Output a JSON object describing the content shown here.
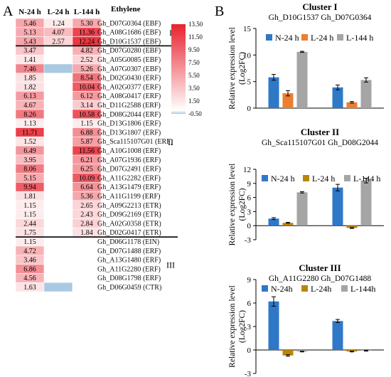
{
  "panel_letters": [
    "A",
    "B"
  ],
  "chart_data": [
    {
      "type": "heatmap",
      "title": "Ethylene",
      "columns": [
        "N-24 h",
        "L-24 h",
        "L-144 h"
      ],
      "color_scale": {
        "ticks": [
          13.5,
          11.5,
          9.5,
          7.5,
          5.5,
          3.5,
          1.5,
          -0.5
        ],
        "tick_labels": [
          "13.50",
          "11.50",
          "9.50",
          "7.50",
          "5.50",
          "3.50",
          "1.50",
          "-0.50"
        ],
        "min": -0.5,
        "max": 13.5,
        "colors": {
          "low": "#a9c9e3",
          "zero": "#ffffff",
          "high": "#e8222e"
        }
      },
      "clusters": [
        {
          "label": "I",
          "start": 0,
          "end": 2
        },
        {
          "label": "II",
          "start": 3,
          "end": 23
        },
        {
          "label": "III",
          "start": 24,
          "end": 29
        }
      ],
      "rows": [
        {
          "gene": "Gh_D07G0364 (EBF)",
          "values": [
            5.46,
            1.24,
            5.3
          ],
          "labels": [
            "5.46",
            "1.24",
            "5.30"
          ]
        },
        {
          "gene": "Gh_A08G1686 (EBF)",
          "values": [
            5.13,
            4.07,
            11.36
          ],
          "labels": [
            "5.13",
            "4.07",
            "11.36"
          ]
        },
        {
          "gene": "Gh_D10G1537 (EBF)",
          "values": [
            5.43,
            2.57,
            12.24
          ],
          "labels": [
            "5.43",
            "2.57",
            "12.24"
          ]
        },
        {
          "gene": "Gh_D07G0280 (EBF)",
          "values": [
            3.47,
            null,
            4.82
          ],
          "labels": [
            "3.47",
            "",
            "4.82"
          ]
        },
        {
          "gene": "Gh_A05G0085 (EBF)",
          "values": [
            1.41,
            null,
            2.52
          ],
          "labels": [
            "1.41",
            "",
            "2.52"
          ]
        },
        {
          "gene": "Gh_A07G0307 (EBF)",
          "values": [
            7.46,
            -0.5,
            5.26
          ],
          "labels": [
            "7.46",
            "",
            "5.26"
          ]
        },
        {
          "gene": "Gh_D02G0430 (ERF)",
          "values": [
            1.85,
            null,
            8.54
          ],
          "labels": [
            "1.85",
            "",
            "8.54"
          ]
        },
        {
          "gene": "Gh_A02G0377 (ERF)",
          "values": [
            1.82,
            null,
            10.04
          ],
          "labels": [
            "1.82",
            "",
            "10.04"
          ]
        },
        {
          "gene": "Gh_A08G0417 (ERF)",
          "values": [
            6.13,
            null,
            6.12
          ],
          "labels": [
            "6.13",
            "",
            "6.12"
          ]
        },
        {
          "gene": "Gh_D11G2588 (ERF)",
          "values": [
            4.67,
            null,
            3.14
          ],
          "labels": [
            "4.67",
            "",
            "3.14"
          ]
        },
        {
          "gene": "Gh_D08G2044 (ERF)",
          "values": [
            8.26,
            null,
            10.58
          ],
          "labels": [
            "8.26",
            "",
            "10.58"
          ]
        },
        {
          "gene": "Gh_D13G1806 (ERF)",
          "values": [
            1.13,
            null,
            1.15
          ],
          "labels": [
            "1.13",
            "",
            "1.15"
          ]
        },
        {
          "gene": "Gh_D13G1807 (ERF)",
          "values": [
            11.71,
            null,
            6.88
          ],
          "labels": [
            "11.71",
            "",
            "6.88"
          ]
        },
        {
          "gene": "Gh_Sca115107G01 (ERF)",
          "values": [
            1.52,
            null,
            5.87
          ],
          "labels": [
            "1.52",
            "",
            "5.87"
          ]
        },
        {
          "gene": "Gh_A10G1008 (ERF)",
          "values": [
            6.49,
            null,
            11.56
          ],
          "labels": [
            "6.49",
            "",
            "11.56"
          ]
        },
        {
          "gene": "Gh_A07G1936 (ERF)",
          "values": [
            3.95,
            null,
            6.21
          ],
          "labels": [
            "3.95",
            "",
            "6.21"
          ]
        },
        {
          "gene": "Gh_D07G2491 (ERF)",
          "values": [
            8.06,
            null,
            6.25
          ],
          "labels": [
            "8.06",
            "",
            "6.25"
          ]
        },
        {
          "gene": "Gh_A11G2282 (ERF)",
          "values": [
            5.15,
            null,
            10.09
          ],
          "labels": [
            "5.15",
            "",
            "10.09"
          ]
        },
        {
          "gene": "Gh_A13G1479 (ERF)",
          "values": [
            9.94,
            null,
            6.64
          ],
          "labels": [
            "9.94",
            "",
            "6.64"
          ]
        },
        {
          "gene": "Gh_A11G1199 (ERF)",
          "values": [
            1.81,
            null,
            5.36
          ],
          "labels": [
            "1.81",
            "",
            "5.36"
          ]
        },
        {
          "gene": "Gh_A09G2213 (ETR)",
          "values": [
            1.15,
            null,
            2.65
          ],
          "labels": [
            "1.15",
            "",
            "2.65"
          ]
        },
        {
          "gene": "Gh_D09G2169 (ETR)",
          "values": [
            1.15,
            null,
            2.43
          ],
          "labels": [
            "1.15",
            "",
            "2.43"
          ]
        },
        {
          "gene": "Gh_A02G0358 (ETR)",
          "values": [
            2.44,
            null,
            2.84
          ],
          "labels": [
            "2.44",
            "",
            "2.84"
          ]
        },
        {
          "gene": "Gh_D02G0417 (ETR)",
          "values": [
            1.75,
            null,
            1.84
          ],
          "labels": [
            "1.75",
            "",
            "1.84"
          ]
        },
        {
          "gene": "Gh_D06G1178 (EIN)",
          "values": [
            1.15,
            null,
            null
          ],
          "labels": [
            "1.15",
            "",
            ""
          ]
        },
        {
          "gene": "Gh_D07G1488 (ERF)",
          "values": [
            4.72,
            null,
            null
          ],
          "labels": [
            "4.72",
            "",
            ""
          ]
        },
        {
          "gene": "Gh_A13G1480 (ERF)",
          "values": [
            3.46,
            null,
            null
          ],
          "labels": [
            "3.46",
            "",
            ""
          ]
        },
        {
          "gene": "Gh_A11G2280 (ERF)",
          "values": [
            6.86,
            null,
            null
          ],
          "labels": [
            "6.86",
            "",
            ""
          ]
        },
        {
          "gene": "Gh_D08G1798 (ERF)",
          "values": [
            4.56,
            null,
            null
          ],
          "labels": [
            "4.56",
            "",
            ""
          ]
        },
        {
          "gene": "Gh_D06G0459 (CTR)",
          "values": [
            1.63,
            -0.5,
            null
          ],
          "labels": [
            "1.63",
            "",
            ""
          ]
        }
      ]
    },
    {
      "type": "bar",
      "title": "Cluster I",
      "subtitle": "Gh_D10G1537   Gh_D07G0364",
      "categories": [
        "Gh_D10G1537",
        "Gh_D07G0364"
      ],
      "ylabel": "Relative expression level",
      "ylabel2": "(Log2FC)",
      "ylim": [
        0,
        15
      ],
      "yticks": [
        0,
        5,
        10,
        15
      ],
      "legend": "top-left",
      "series": [
        {
          "name": "N-24 h",
          "color": "#2f78c8",
          "values": [
            5.8,
            3.9
          ],
          "errors": [
            0.55,
            0.45
          ]
        },
        {
          "name": "L-24 h",
          "color": "#ed7d31",
          "values": [
            2.8,
            1.1
          ],
          "errors": [
            0.5,
            0.15
          ]
        },
        {
          "name": "L-144 h",
          "color": "#a5a5a5",
          "values": [
            10.6,
            5.3
          ],
          "errors": [
            0.1,
            0.4
          ]
        }
      ]
    },
    {
      "type": "bar",
      "title": "Cluster II",
      "subtitle": "Gh_Sca115107G01    Gh_D08G2044",
      "categories": [
        "Gh_Sca115107G01",
        "Gh_D08G2044"
      ],
      "ylabel": "Relative expression level",
      "ylabel2": "(Log2FC)",
      "ylim": [
        -3,
        12
      ],
      "yticks": [
        -3,
        0,
        3,
        6,
        9,
        12
      ],
      "legend": "top",
      "series": [
        {
          "name": "N-24 h",
          "color": "#2f78c8",
          "values": [
            1.5,
            8.1
          ],
          "errors": [
            0.2,
            0.7
          ]
        },
        {
          "name": "L-24 h",
          "color": "#b8860b",
          "values": [
            0.6,
            -0.5
          ],
          "errors": [
            0.1,
            0.1
          ]
        },
        {
          "name": "L-144 h",
          "color": "#a5a5a5",
          "values": [
            7.1,
            9.6
          ],
          "errors": [
            0.15,
            0.5
          ]
        }
      ]
    },
    {
      "type": "bar",
      "title": "Cluster III",
      "subtitle": "Gh_A11G2280   Gh_D07G1488",
      "categories": [
        "Gh_A11G2280",
        "Gh_D07G1488"
      ],
      "ylabel": "Relative expression level",
      "ylabel2": "(Log2FC)",
      "ylim": [
        -3,
        9
      ],
      "yticks": [
        -3,
        0,
        3,
        6,
        9
      ],
      "legend": "top",
      "series": [
        {
          "name": "N-24h",
          "color": "#2f78c8",
          "values": [
            6.2,
            3.7
          ],
          "errors": [
            0.6,
            0.2
          ]
        },
        {
          "name": "L-24h",
          "color": "#b8860b",
          "values": [
            -0.7,
            -0.2
          ],
          "errors": [
            0.1,
            0.05
          ]
        },
        {
          "name": "L-144h",
          "color": "#a5a5a5",
          "values": [
            -0.2,
            -0.1
          ],
          "errors": [
            0.05,
            0.05
          ]
        }
      ]
    }
  ]
}
